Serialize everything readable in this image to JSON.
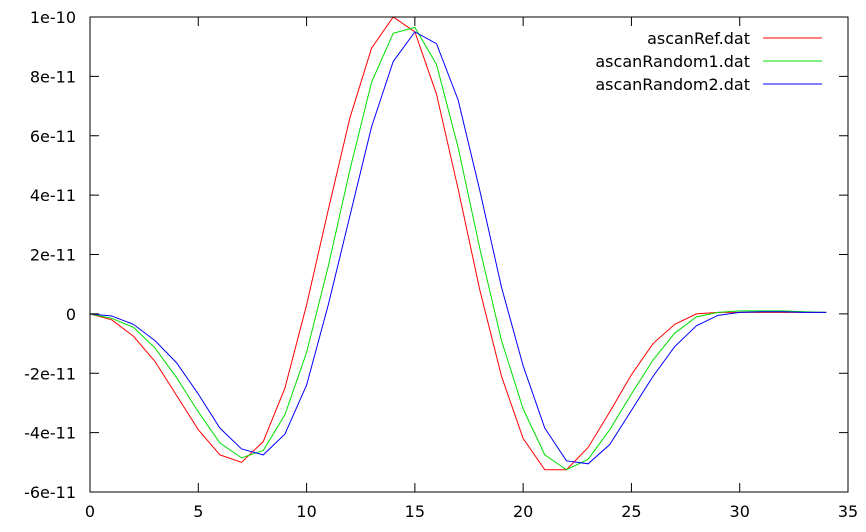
{
  "chart_data": {
    "type": "line",
    "title": "",
    "xlabel": "",
    "ylabel": "",
    "xlim": [
      0,
      35
    ],
    "ylim": [
      -6e-11,
      1e-10
    ],
    "x_ticks": [
      0,
      5,
      10,
      15,
      20,
      25,
      30,
      35
    ],
    "x_tick_labels": [
      "0",
      "5",
      "10",
      "15",
      "20",
      "25",
      "30",
      "35"
    ],
    "y_ticks": [
      -6e-11,
      -4e-11,
      -2e-11,
      0,
      2e-11,
      4e-11,
      6e-11,
      8e-11,
      1e-10
    ],
    "y_tick_labels": [
      "-6e-11",
      "-4e-11",
      "-2e-11",
      "0",
      "2e-11",
      "4e-11",
      "6e-11",
      "8e-11",
      "1e-10"
    ],
    "grid": false,
    "legend": "top-right",
    "x": [
      0,
      1,
      2,
      3,
      4,
      5,
      6,
      7,
      8,
      9,
      10,
      11,
      12,
      13,
      14,
      15,
      16,
      17,
      18,
      19,
      20,
      21,
      22,
      23,
      24,
      25,
      26,
      27,
      28,
      29,
      30,
      31,
      32,
      33,
      34
    ],
    "series": [
      {
        "name": "ascanRef.dat",
        "color": "#ff0000",
        "values": [
          0,
          -2e-12,
          -7.5e-12,
          -1.6e-11,
          -2.75e-11,
          -3.9e-11,
          -4.75e-11,
          -5e-11,
          -4.3e-11,
          -2.5e-11,
          3e-12,
          3.5e-11,
          6.6e-11,
          8.95e-11,
          1e-10,
          9.5e-11,
          7.4e-11,
          4.2e-11,
          8e-12,
          -2.1e-11,
          -4.2e-11,
          -5.25e-11,
          -5.25e-11,
          -4.5e-11,
          -3.3e-11,
          -2.05e-11,
          -1e-11,
          -3.5e-12,
          0,
          5e-13,
          5e-13,
          5e-13,
          5e-13,
          5e-13,
          5e-13
        ]
      },
      {
        "name": "ascanRandom1.dat",
        "color": "#00e000",
        "values": [
          0,
          -1.5e-12,
          -4.5e-12,
          -1.15e-11,
          -2.15e-11,
          -3.3e-11,
          -4.35e-11,
          -4.85e-11,
          -4.6e-11,
          -3.4e-11,
          -1.3e-11,
          1.6e-11,
          4.85e-11,
          7.8e-11,
          9.45e-11,
          9.65e-11,
          8.4e-11,
          5.6e-11,
          2.2e-11,
          -9e-12,
          -3.2e-11,
          -4.75e-11,
          -5.25e-11,
          -4.9e-11,
          -3.9e-11,
          -2.7e-11,
          -1.55e-11,
          -6.5e-12,
          -1e-12,
          5e-13,
          1e-12,
          1e-12,
          1e-12,
          7e-13,
          5e-13
        ]
      },
      {
        "name": "ascanRandom2.dat",
        "color": "#0000ff",
        "values": [
          0,
          -7e-13,
          -3.5e-12,
          -9e-12,
          -1.65e-11,
          -2.7e-11,
          -3.85e-11,
          -4.55e-11,
          -4.75e-11,
          -4.05e-11,
          -2.4e-11,
          3e-12,
          3.3e-11,
          6.3e-11,
          8.5e-11,
          9.5e-11,
          9.1e-11,
          7.2e-11,
          4.15e-11,
          9e-12,
          -1.75e-11,
          -3.85e-11,
          -4.95e-11,
          -5.05e-11,
          -4.4e-11,
          -3.25e-11,
          -2.1e-11,
          -1.1e-11,
          -4e-12,
          -5e-13,
          5e-13,
          7e-13,
          7e-13,
          5e-13,
          5e-13
        ]
      }
    ]
  }
}
